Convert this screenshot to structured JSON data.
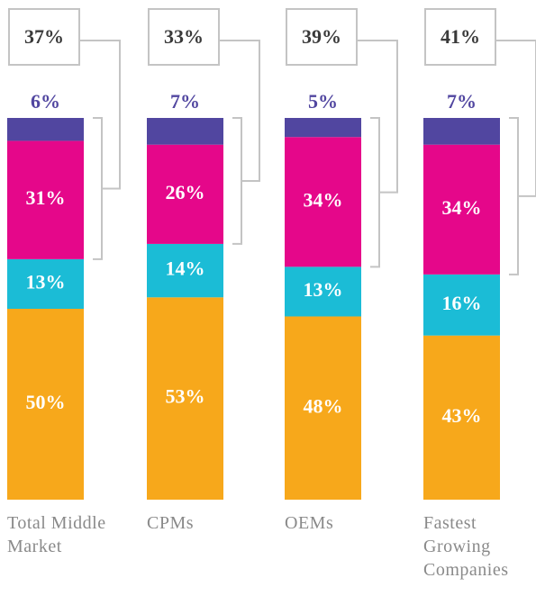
{
  "chart_data": {
    "type": "stacked_bar",
    "categories": [
      "Total Middle Market",
      "CPMs",
      "OEMs",
      "Fastest Growing Companies"
    ],
    "series": [
      {
        "color": "#f7a81b",
        "values": [
          50,
          53,
          48,
          43
        ],
        "value_labels": [
          "50%",
          "53%",
          "48%",
          "43%"
        ]
      },
      {
        "color": "#1bbcd6",
        "values": [
          13,
          14,
          13,
          16
        ],
        "value_labels": [
          "13%",
          "14%",
          "13%",
          "16%"
        ]
      },
      {
        "color": "#e5078a",
        "values": [
          31,
          26,
          34,
          34
        ],
        "value_labels": [
          "31%",
          "26%",
          "34%",
          "34%"
        ]
      },
      {
        "color": "#5146a0",
        "values": [
          6,
          7,
          5,
          7
        ],
        "value_labels": [
          "6%",
          "7%",
          "5%",
          "7%"
        ]
      }
    ],
    "bracket_totals": {
      "values": [
        37,
        33,
        39,
        41
      ],
      "value_labels": [
        "37%",
        "33%",
        "39%",
        "41%"
      ]
    },
    "ylim": [
      0,
      100
    ]
  }
}
